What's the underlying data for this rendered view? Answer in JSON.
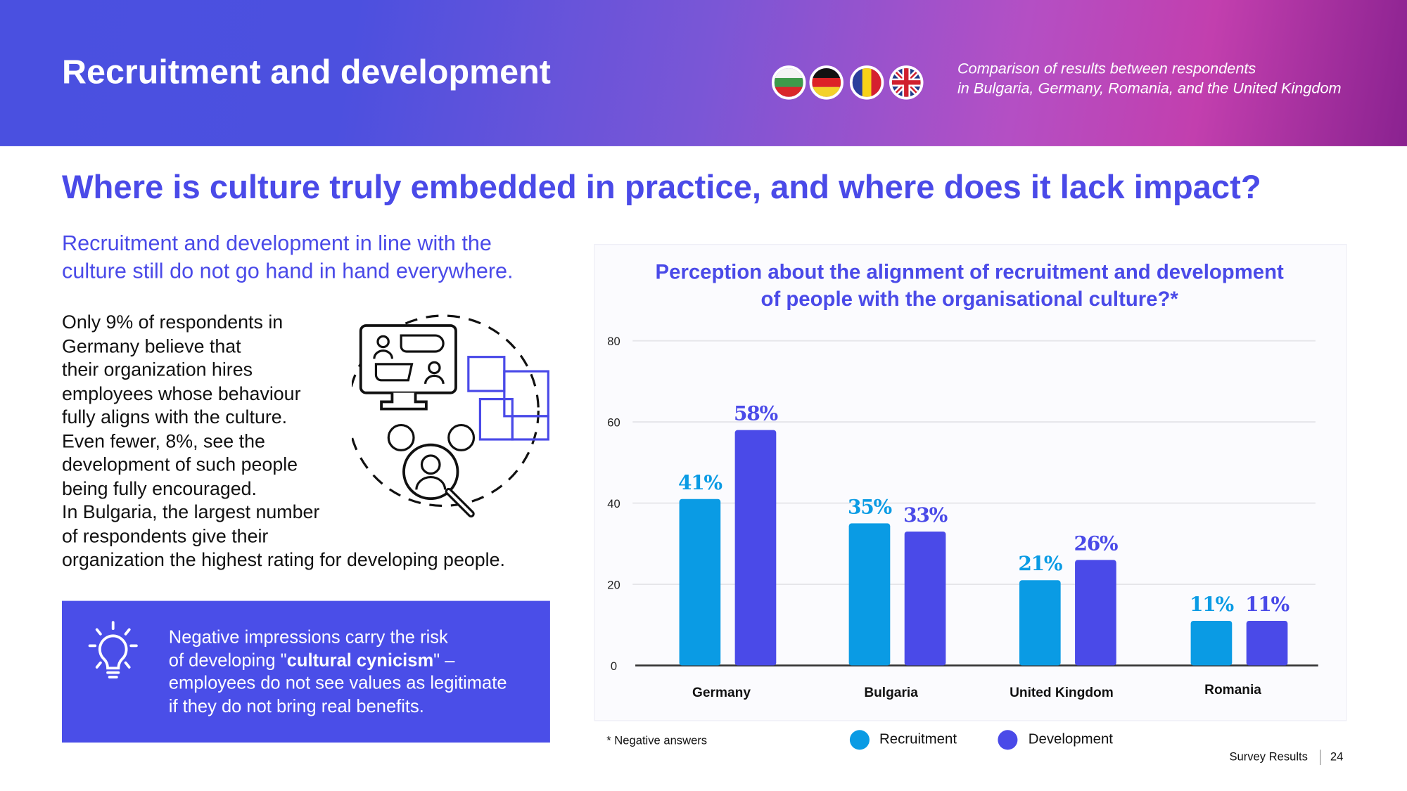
{
  "header": {
    "title": "Recruitment and development",
    "subtitle_lines": [
      "Comparison of results between respondents",
      "in Bulgaria, Germany, Romania, and the United Kingdom"
    ],
    "flags": [
      "bulgaria-flag-icon",
      "germany-flag-icon",
      "romania-flag-icon",
      "uk-flag-icon"
    ],
    "gradient_colors": [
      "#4a50e0",
      "#c23fae",
      "#8a2290"
    ]
  },
  "heading": "Where is culture truly embedded in practice, and where does it lack impact?",
  "intro_lines": [
    "Recruitment and development in line with the",
    "culture still do not go hand in hand everywhere."
  ],
  "body_lines": [
    "Only 9% of respondents in",
    "Germany believe that",
    "their organization hires",
    "employees whose behaviour",
    "fully aligns with the culture.",
    "Even fewer, 8%, see the",
    "development of such people",
    "being fully encouraged.",
    "In Bulgaria, the largest number",
    "of respondents give their",
    "organization the highest rating for developing people."
  ],
  "callout": {
    "icon": "lightbulb-icon",
    "line1": "Negative impressions carry the risk",
    "line2_pre": "of developing \"",
    "line2_bold": "cultural cynicism",
    "line2_post": "\" –",
    "line3": "employees do not see values as legitimate",
    "line4": "if they do not bring real benefits.",
    "background": "#4a4ee8"
  },
  "chart_data": {
    "type": "bar",
    "title_lines": [
      "Perception about the alignment of recruitment and development",
      "of people with the organisational culture?*"
    ],
    "categories": [
      "Germany",
      "Bulgaria",
      "United Kingdom",
      "Romania"
    ],
    "series": [
      {
        "name": "Recruitment",
        "values": [
          41,
          35,
          21,
          11
        ],
        "labels": [
          "41%",
          "35%",
          "21%",
          "11%"
        ],
        "color": "#0a9be4"
      },
      {
        "name": "Development",
        "values": [
          58,
          33,
          26,
          11
        ],
        "labels": [
          "58%",
          "33%",
          "26%",
          "11%"
        ],
        "color": "#4a4ae8"
      }
    ],
    "yticks": [
      "0",
      "20",
      "40",
      "60",
      "80"
    ],
    "ylim": [
      0,
      80
    ],
    "grid": true,
    "legend": "bottom",
    "note": "* Negative answers"
  },
  "footer": {
    "label": "Survey Results",
    "page": "24"
  }
}
